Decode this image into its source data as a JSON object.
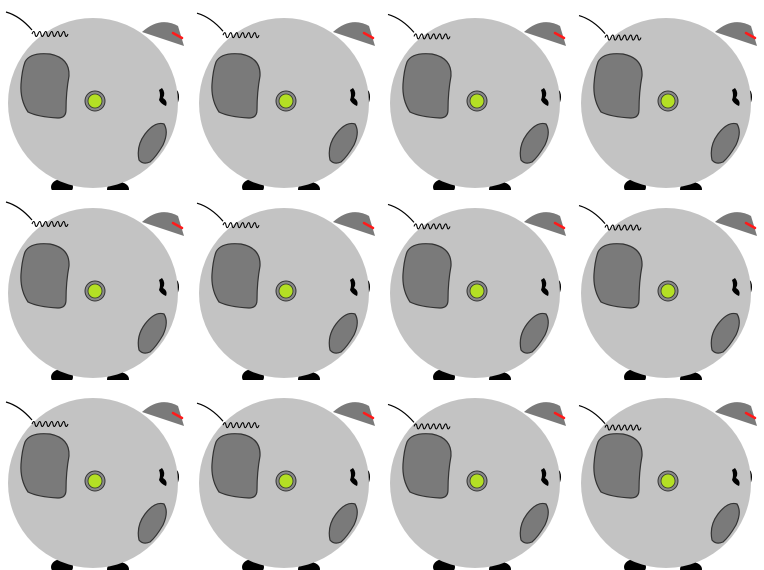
{
  "sprite_sheet": {
    "columns": 4,
    "rows": 3,
    "colors": {
      "background": "#ffffff",
      "body": "#c3c3c3",
      "patch": "#7a7a7a",
      "outline": "#333333",
      "eye_ring": "#8a8a8a",
      "eye": "#b4e024",
      "leg": "#000000",
      "ear_accent": "#ff1a1a"
    },
    "frames": [
      {
        "index": 1,
        "icon": "creature-frame",
        "tail_phase": 0
      },
      {
        "index": 2,
        "icon": "creature-frame",
        "tail_phase": 1
      },
      {
        "index": 3,
        "icon": "creature-frame",
        "tail_phase": 2
      },
      {
        "index": 4,
        "icon": "creature-frame",
        "tail_phase": 3
      },
      {
        "index": 5,
        "icon": "creature-frame",
        "tail_phase": 4
      },
      {
        "index": 6,
        "icon": "creature-frame",
        "tail_phase": 5
      },
      {
        "index": 7,
        "icon": "creature-frame",
        "tail_phase": 6
      },
      {
        "index": 8,
        "icon": "creature-frame",
        "tail_phase": 7
      },
      {
        "index": 9,
        "icon": "creature-frame",
        "tail_phase": 8
      },
      {
        "index": 10,
        "icon": "creature-frame",
        "tail_phase": 9
      },
      {
        "index": 11,
        "icon": "creature-frame",
        "tail_phase": 10
      },
      {
        "index": 12,
        "icon": "creature-frame",
        "tail_phase": 11
      }
    ]
  }
}
